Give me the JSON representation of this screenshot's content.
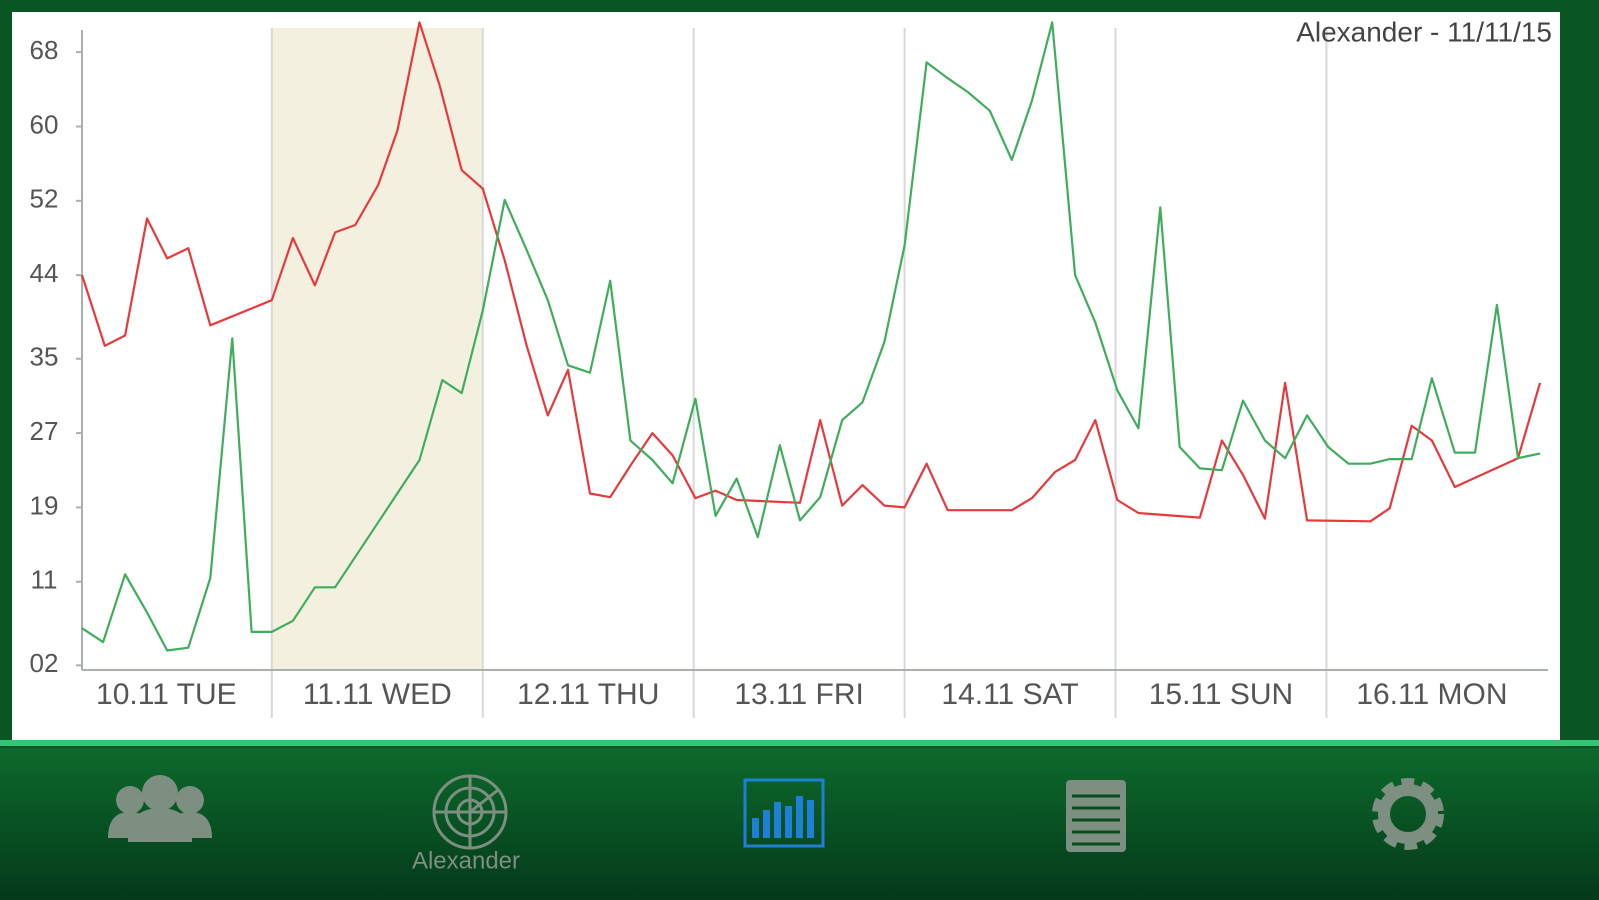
{
  "chart_data": {
    "type": "line",
    "title": "Alexander  - 11/11/15",
    "categories": [
      "10.11 TUE",
      "11.11 WED",
      "12.11 THU",
      "13.11 FRI",
      "14.11 SAT",
      "15.11 SUN",
      "16.11 MON"
    ],
    "highlight": 1,
    "xlim": [
      2.4,
      168.3
    ],
    "ylim": [
      1.5,
      72
    ],
    "yticks": [
      {
        "value": 2,
        "label": "02"
      },
      11,
      19,
      27,
      35,
      44,
      52,
      60,
      68
    ],
    "series": [
      {
        "color": "#e8393c",
        "x": [
          2.4,
          5.0,
          7.3,
          9.8,
          12.1,
          14.5,
          17.0,
          24.0,
          26.4,
          28.9,
          31.2,
          33.5,
          36.1,
          38.3,
          40.8,
          43.1,
          45.6,
          48.0,
          50.5,
          53.0,
          55.4,
          57.7,
          60.2,
          62.5,
          64.8,
          67.3,
          69.6,
          72.2,
          74.5,
          76.9,
          84.1,
          86.4,
          88.9,
          91.2,
          93.7,
          96.0,
          98.5,
          100.9,
          108.2,
          110.5,
          113.1,
          115.4,
          117.7,
          120.2,
          122.6,
          129.6,
          132.1,
          134.5,
          137.0,
          139.3,
          141.8,
          149.0,
          151.2,
          153.7,
          156.0,
          158.6,
          165.8,
          168.3
        ],
        "values": [
          44.0,
          36.4,
          37.5,
          50.1,
          45.8,
          46.9,
          38.6,
          41.3,
          48.0,
          42.9,
          48.6,
          49.4,
          53.7,
          59.6,
          71.2,
          64.4,
          55.3,
          53.3,
          45.6,
          36.4,
          28.9,
          33.8,
          20.5,
          20.1,
          23.5,
          27.0,
          24.6,
          20.0,
          20.8,
          19.8,
          19.5,
          28.4,
          19.2,
          21.4,
          19.2,
          19.0,
          23.7,
          18.7,
          18.7,
          20.0,
          22.8,
          24.1,
          28.4,
          19.8,
          18.4,
          17.9,
          26.2,
          22.5,
          17.8,
          32.4,
          17.6,
          17.5,
          18.9,
          27.8,
          26.2,
          21.2,
          24.3,
          32.4
        ]
      },
      {
        "color": "#3fae5c",
        "x": [
          2.4,
          4.8,
          7.3,
          9.8,
          12.1,
          14.5,
          17.0,
          19.5,
          21.7,
          24.0,
          26.4,
          28.9,
          31.2,
          40.8,
          43.4,
          45.6,
          48.0,
          50.5,
          53.0,
          55.4,
          57.7,
          60.2,
          62.5,
          64.8,
          67.3,
          69.6,
          72.2,
          74.5,
          76.9,
          79.3,
          81.8,
          84.1,
          86.4,
          88.9,
          91.2,
          93.7,
          96.0,
          98.5,
          100.9,
          103.2,
          105.7,
          108.2,
          110.5,
          112.8,
          115.4,
          117.7,
          120.2,
          122.6,
          125.1,
          127.3,
          129.6,
          132.1,
          134.5,
          137.0,
          139.3,
          141.8,
          144.2,
          146.5,
          149.0,
          151.2,
          153.7,
          156.0,
          158.6,
          160.9,
          163.4,
          165.8,
          168.3
        ],
        "values": [
          6.0,
          4.5,
          11.8,
          7.7,
          3.6,
          3.9,
          11.4,
          37.2,
          5.6,
          5.6,
          6.8,
          10.4,
          10.4,
          24.1,
          32.7,
          31.3,
          40.2,
          52.1,
          46.7,
          41.3,
          34.3,
          33.5,
          43.4,
          26.2,
          24.1,
          21.6,
          30.7,
          18.1,
          22.1,
          15.8,
          25.7,
          17.6,
          20.1,
          28.4,
          30.3,
          36.8,
          47.2,
          66.9,
          65.2,
          63.7,
          61.7,
          56.4,
          62.8,
          71.2,
          44.0,
          38.9,
          31.6,
          27.5,
          51.3,
          25.5,
          23.2,
          23.0,
          30.5,
          26.2,
          24.3,
          28.9,
          25.5,
          23.7,
          23.7,
          24.2,
          24.2,
          32.9,
          24.9,
          24.9,
          40.8,
          24.3,
          24.8
        ]
      }
    ]
  },
  "tab_bar": {
    "label": "Alexander"
  }
}
